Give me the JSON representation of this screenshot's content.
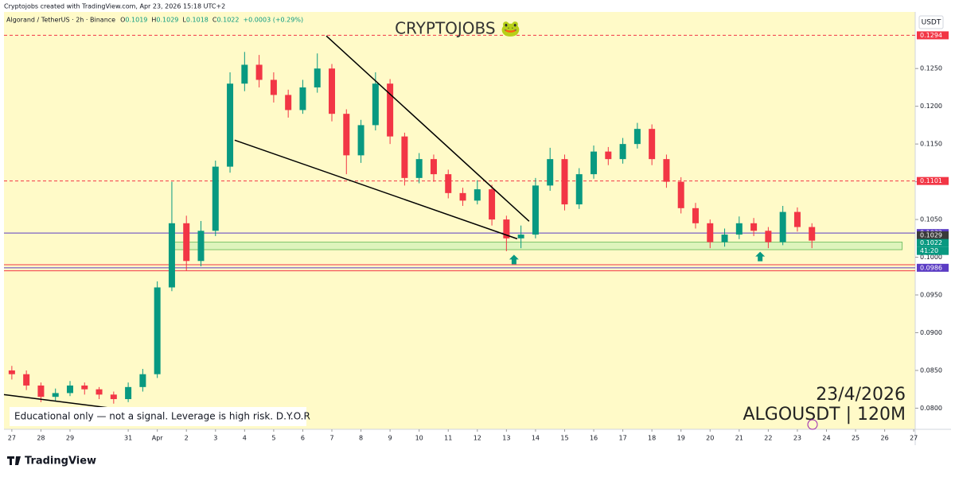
{
  "header": "Cryptojobs created with TradingView.com, Apr 23, 2026 15:18 UTC+2",
  "footer": "TradingView",
  "chart_data": {
    "type": "candlestick",
    "title": "CRYPTOJOBS 🐸",
    "currency": "USDT",
    "legend": {
      "symbol": "Algorand / TetherUS · 2h · Binance",
      "ohlc": [
        {
          "name": "O",
          "value": 0.1019
        },
        {
          "name": "H",
          "value": 0.1029
        },
        {
          "name": "L",
          "value": 0.1018
        },
        {
          "name": "C",
          "value": 0.1022
        }
      ],
      "change": "+0.0003 (+0.29%)"
    },
    "up_color": "#089981",
    "down_color": "#f23645",
    "xlim": [
      -0.27,
      31.05
    ],
    "ylim": [
      0.0772,
      0.1325
    ],
    "yticks": [
      {
        "value": 0.08,
        "label": "0.0800"
      },
      {
        "value": 0.085,
        "label": "0.0850"
      },
      {
        "value": 0.09,
        "label": "0.0900"
      },
      {
        "value": 0.095,
        "label": "0.0950"
      },
      {
        "value": 0.1,
        "label": "0.1000"
      },
      {
        "value": 0.105,
        "label": "0.1050"
      },
      {
        "value": 0.11,
        "label": "0.1100"
      },
      {
        "value": 0.115,
        "label": "0.1150"
      },
      {
        "value": 0.12,
        "label": "0.1200"
      },
      {
        "value": 0.125,
        "label": "0.1250"
      }
    ],
    "xticks": [
      {
        "value": 0,
        "label": "27"
      },
      {
        "value": 1,
        "label": "28"
      },
      {
        "value": 2,
        "label": "29"
      },
      {
        "value": 4,
        "label": "31"
      },
      {
        "value": 5,
        "label": "Apr"
      },
      {
        "value": 6,
        "label": "2"
      },
      {
        "value": 7,
        "label": "3"
      },
      {
        "value": 8,
        "label": "4"
      },
      {
        "value": 9,
        "label": "5"
      },
      {
        "value": 10,
        "label": "6"
      },
      {
        "value": 11,
        "label": "7"
      },
      {
        "value": 12,
        "label": "8"
      },
      {
        "value": 13,
        "label": "9"
      },
      {
        "value": 14,
        "label": "10"
      },
      {
        "value": 15,
        "label": "11"
      },
      {
        "value": 16,
        "label": "12"
      },
      {
        "value": 17,
        "label": "13"
      },
      {
        "value": 18,
        "label": "14"
      },
      {
        "value": 19,
        "label": "15"
      },
      {
        "value": 20,
        "label": "16"
      },
      {
        "value": 21,
        "label": "17"
      },
      {
        "value": 22,
        "label": "18"
      },
      {
        "value": 23,
        "label": "19"
      },
      {
        "value": 24,
        "label": "20"
      },
      {
        "value": 25,
        "label": "21"
      },
      {
        "value": 26,
        "label": "22"
      },
      {
        "value": 27,
        "label": "23"
      },
      {
        "value": 28,
        "label": "24"
      },
      {
        "value": 29,
        "label": "25"
      },
      {
        "value": 30,
        "label": "26"
      },
      {
        "value": 31,
        "label": "27"
      }
    ],
    "ohlc": [
      [
        0,
        0.085,
        0.0856,
        0.0838,
        0.0845
      ],
      [
        0.5,
        0.0845,
        0.085,
        0.0824,
        0.083
      ],
      [
        1,
        0.083,
        0.0834,
        0.0808,
        0.0815
      ],
      [
        1.5,
        0.0815,
        0.0826,
        0.081,
        0.082
      ],
      [
        2,
        0.082,
        0.0836,
        0.0816,
        0.083
      ],
      [
        2.5,
        0.083,
        0.0834,
        0.0818,
        0.0825
      ],
      [
        3,
        0.0825,
        0.0828,
        0.0812,
        0.0818
      ],
      [
        3.5,
        0.0818,
        0.0822,
        0.0806,
        0.0812
      ],
      [
        4,
        0.0812,
        0.0834,
        0.0808,
        0.0828
      ],
      [
        4.5,
        0.0828,
        0.0852,
        0.0822,
        0.0845
      ],
      [
        5,
        0.0845,
        0.0968,
        0.084,
        0.096
      ],
      [
        5.5,
        0.096,
        0.11,
        0.0955,
        0.1045
      ],
      [
        6,
        0.1045,
        0.1055,
        0.0982,
        0.0995
      ],
      [
        6.5,
        0.0995,
        0.1048,
        0.0988,
        0.1035
      ],
      [
        7,
        0.1035,
        0.1128,
        0.1028,
        0.112
      ],
      [
        7.5,
        0.112,
        0.1245,
        0.1112,
        0.123
      ],
      [
        8,
        0.123,
        0.1272,
        0.122,
        0.1255
      ],
      [
        8.5,
        0.1255,
        0.1268,
        0.1225,
        0.1235
      ],
      [
        9,
        0.1235,
        0.1245,
        0.1205,
        0.1215
      ],
      [
        9.5,
        0.1215,
        0.1222,
        0.1185,
        0.1195
      ],
      [
        10,
        0.1195,
        0.1235,
        0.119,
        0.1225
      ],
      [
        10.5,
        0.1225,
        0.127,
        0.1218,
        0.125
      ],
      [
        11,
        0.125,
        0.1256,
        0.118,
        0.119
      ],
      [
        11.5,
        0.119,
        0.1196,
        0.111,
        0.1135
      ],
      [
        12,
        0.1135,
        0.1182,
        0.1125,
        0.1175
      ],
      [
        12.5,
        0.1175,
        0.1245,
        0.1168,
        0.123
      ],
      [
        13,
        0.123,
        0.1236,
        0.115,
        0.116
      ],
      [
        13.5,
        0.116,
        0.1165,
        0.1095,
        0.1105
      ],
      [
        14,
        0.1105,
        0.1138,
        0.1098,
        0.113
      ],
      [
        14.5,
        0.113,
        0.1136,
        0.11,
        0.111
      ],
      [
        15,
        0.111,
        0.1116,
        0.1078,
        0.1085
      ],
      [
        15.5,
        0.1085,
        0.1092,
        0.1068,
        0.1075
      ],
      [
        16,
        0.1075,
        0.1102,
        0.107,
        0.109
      ],
      [
        16.5,
        0.109,
        0.1096,
        0.1042,
        0.105
      ],
      [
        17,
        0.105,
        0.1055,
        0.1008,
        0.1025
      ],
      [
        17.5,
        0.1025,
        0.1042,
        0.1012,
        0.103
      ],
      [
        18,
        0.103,
        0.1105,
        0.1025,
        0.1095
      ],
      [
        18.5,
        0.1095,
        0.1145,
        0.1088,
        0.113
      ],
      [
        19,
        0.113,
        0.1136,
        0.1062,
        0.107
      ],
      [
        19.5,
        0.107,
        0.1118,
        0.1064,
        0.111
      ],
      [
        20,
        0.111,
        0.1148,
        0.1104,
        0.114
      ],
      [
        20.5,
        0.114,
        0.1146,
        0.1122,
        0.113
      ],
      [
        21,
        0.113,
        0.1158,
        0.1124,
        0.115
      ],
      [
        21.5,
        0.115,
        0.1178,
        0.1144,
        0.117
      ],
      [
        22,
        0.117,
        0.1176,
        0.1122,
        0.113
      ],
      [
        22.5,
        0.113,
        0.1136,
        0.1092,
        0.11
      ],
      [
        23,
        0.11,
        0.1106,
        0.1058,
        0.1065
      ],
      [
        23.5,
        0.1065,
        0.1072,
        0.1038,
        0.1045
      ],
      [
        24,
        0.1045,
        0.105,
        0.1012,
        0.102
      ],
      [
        24.5,
        0.102,
        0.1038,
        0.1014,
        0.103
      ],
      [
        25,
        0.103,
        0.1054,
        0.1024,
        0.1045
      ],
      [
        25.5,
        0.1045,
        0.1052,
        0.1028,
        0.1035
      ],
      [
        26,
        0.1035,
        0.104,
        0.1012,
        0.102
      ],
      [
        26.5,
        0.102,
        0.1068,
        0.1016,
        0.106
      ],
      [
        27,
        0.106,
        0.1066,
        0.1034,
        0.104
      ],
      [
        27.5,
        0.104,
        0.1045,
        0.1012,
        0.1022
      ]
    ],
    "levels": [
      {
        "value": 0.1294,
        "color": "#f23645",
        "dashed": true,
        "tag": true
      },
      {
        "value": 0.1101,
        "color": "#f23645",
        "dashed": true,
        "tag": true
      },
      {
        "value": 0.1032,
        "color": "#5b3cc4",
        "dashed": false,
        "tag": true
      },
      {
        "value": 0.0986,
        "color": "#5b3cc4",
        "dashed": false,
        "tag": true
      },
      {
        "value": 0.099,
        "color": "#f23645",
        "dashed": false,
        "tag": false
      },
      {
        "value": 0.0982,
        "color": "#f23645",
        "dashed": false,
        "tag": false
      }
    ],
    "price_tags": [
      {
        "value": 0.1029,
        "color": "#3a3a3a"
      },
      {
        "value": 0.1022,
        "color": "#089981"
      }
    ],
    "countdown": "41:20",
    "zone": {
      "x": [
        5.56,
        30.6
      ],
      "y": [
        0.101,
        0.102
      ]
    },
    "trendlines": [
      [
        10.81,
        0.12932,
        17.78,
        0.10476
      ],
      [
        7.66,
        0.11551,
        17.37,
        0.10244
      ],
      [
        -0.27,
        0.08179,
        7.8,
        0.07789
      ]
    ],
    "arrows": [
      [
        17.26,
        0.0997
      ],
      [
        25.72,
        0.1001
      ]
    ],
    "note": "Educational only — not a signal. Leverage is high risk. D.Y.O.R",
    "date_text": "23/4/2026",
    "symbol_text": "ALGOUSDT | 120M"
  }
}
